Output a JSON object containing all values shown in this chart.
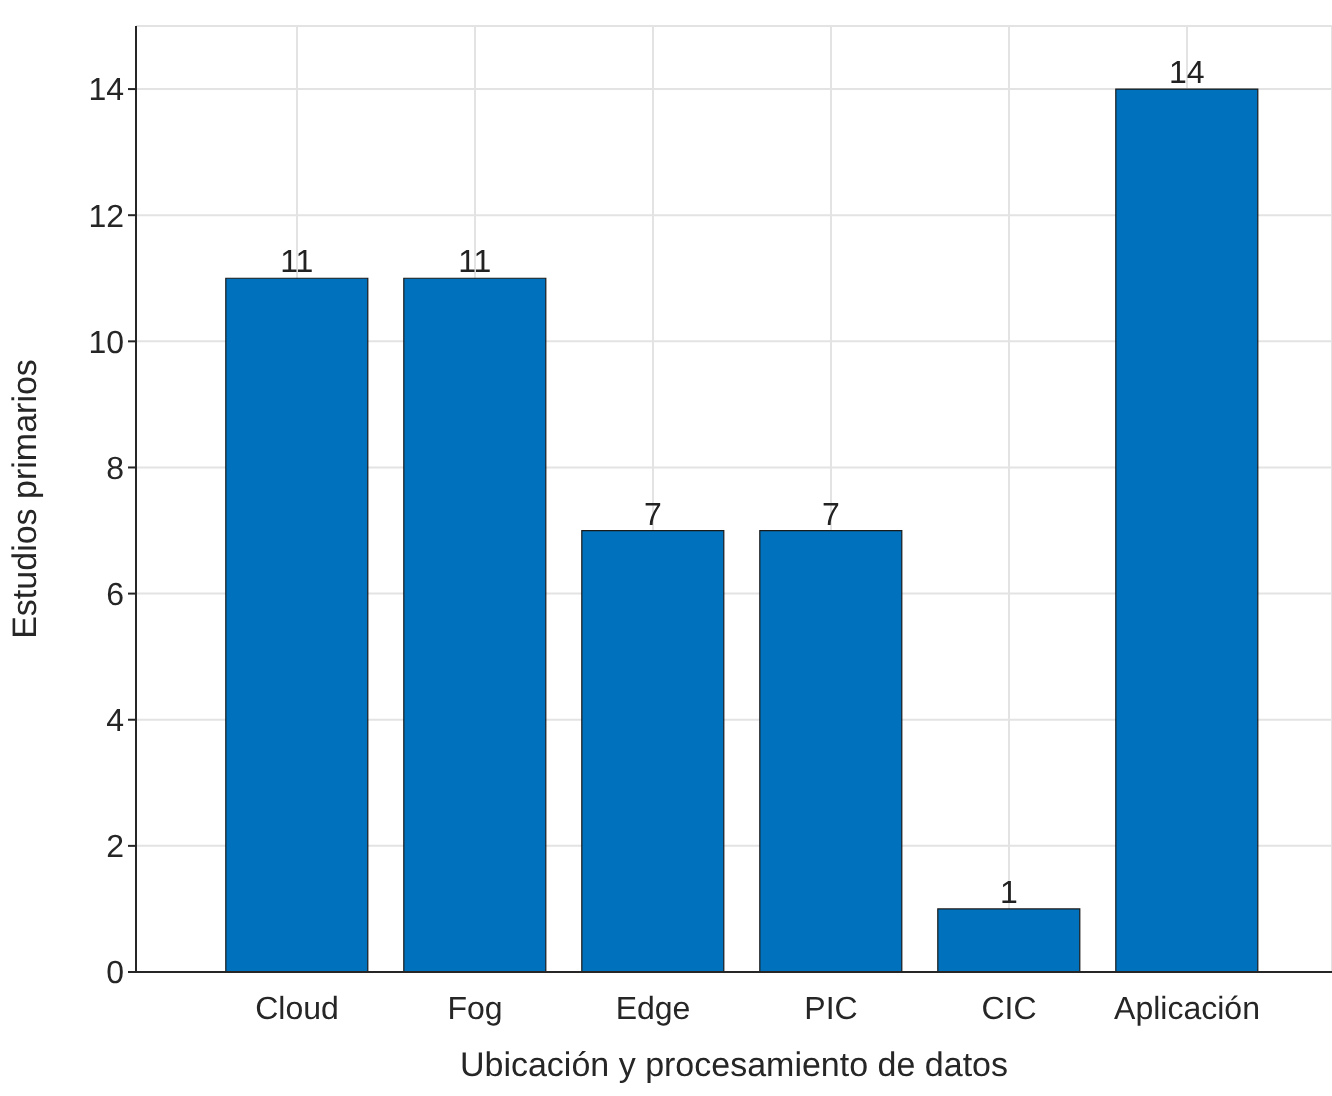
{
  "chart_data": {
    "type": "bar",
    "xlabel": "Ubicación y procesamiento de datos",
    "ylabel": "Estudios primarios",
    "categories": [
      "Cloud",
      "Fog",
      "Edge",
      "PIC",
      "CIC",
      "Aplicación"
    ],
    "values": [
      11,
      11,
      7,
      7,
      1,
      14
    ],
    "color": "#0072bd",
    "ylim": [
      0,
      15
    ],
    "yticks": [
      0,
      2,
      4,
      6,
      8,
      10,
      12,
      14
    ],
    "grid": true,
    "data_labels": true
  }
}
